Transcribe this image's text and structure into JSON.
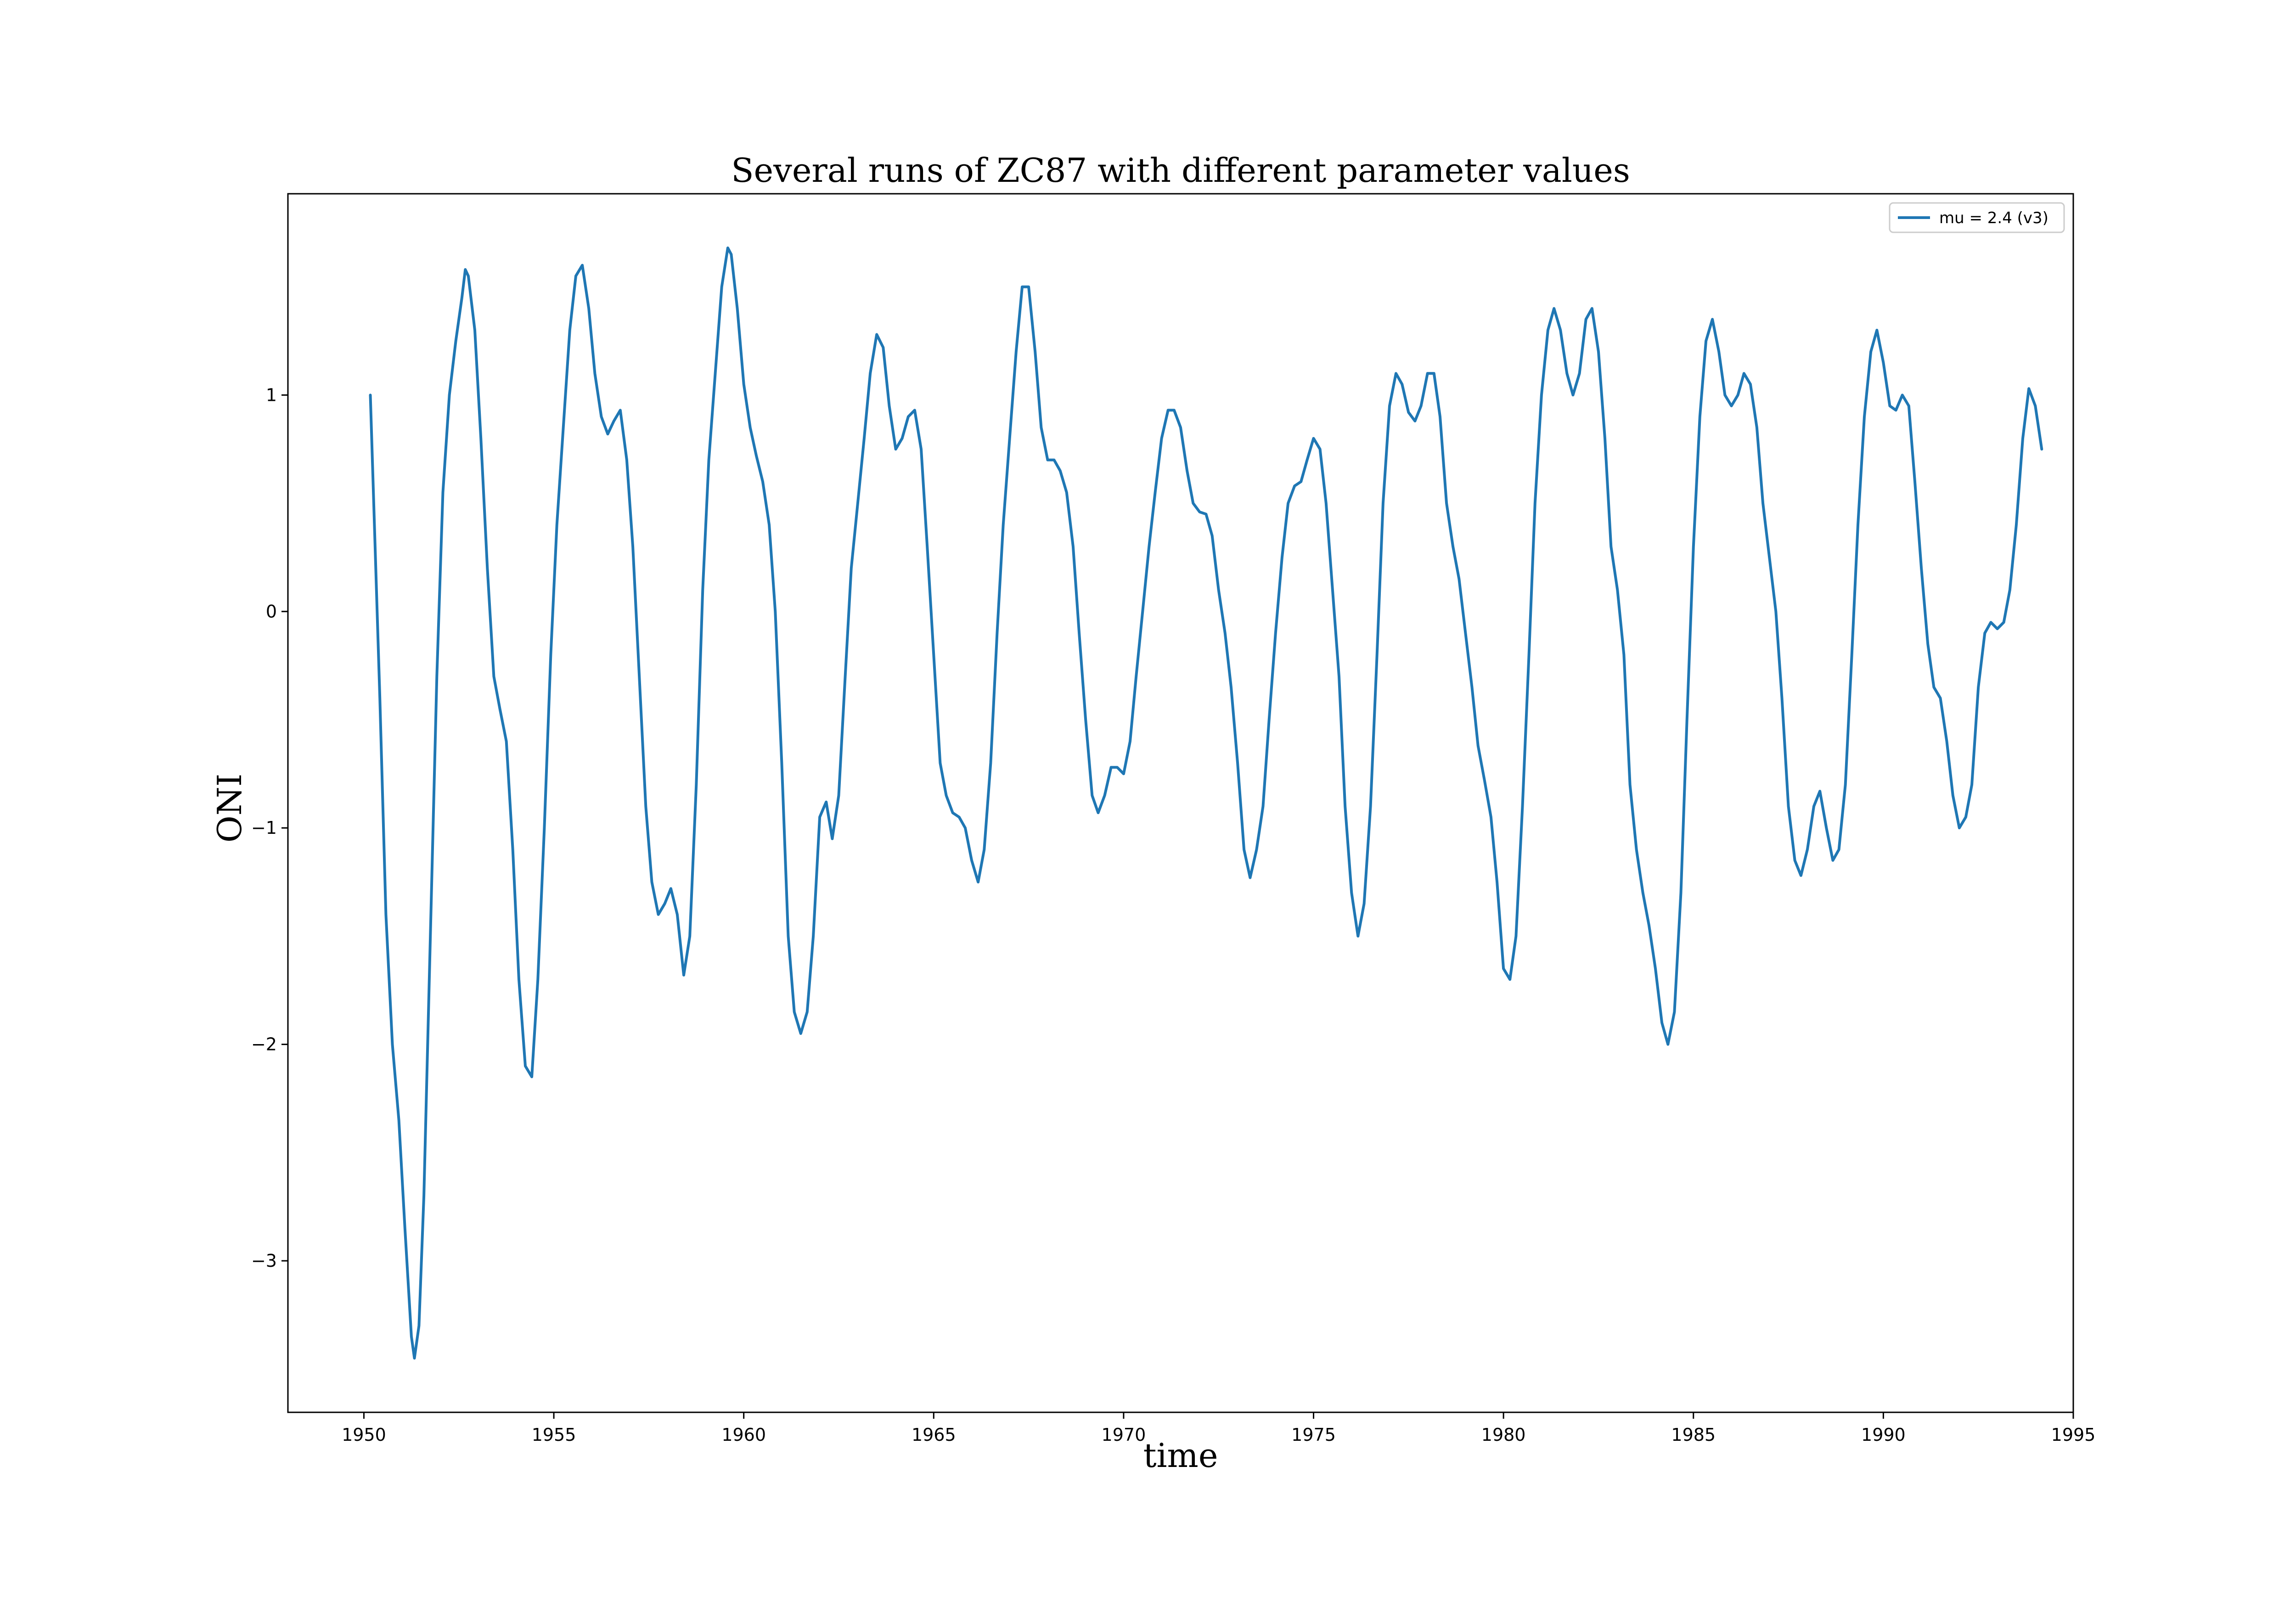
{
  "chart_data": {
    "type": "line",
    "title": "Several runs of ZC87 with different parameter values",
    "xlabel": "time",
    "ylabel": "ONI",
    "xlim": [
      1948.0,
      1995.0
    ],
    "ylim": [
      -3.7,
      1.93
    ],
    "xticks": [
      1950,
      1955,
      1960,
      1965,
      1970,
      1975,
      1980,
      1985,
      1990,
      1995
    ],
    "xtick_labels": [
      "1950",
      "1955",
      "1960",
      "1965",
      "1970",
      "1975",
      "1980",
      "1985",
      "1990",
      "1995"
    ],
    "yticks": [
      -3,
      -2,
      -1,
      0,
      1
    ],
    "ytick_labels": [
      "−3",
      "−2",
      "−1",
      "0",
      "1"
    ],
    "grid": false,
    "legend_position": "top-right",
    "series": [
      {
        "name": "mu = 2.4 (v3)",
        "color": "#1f77b4",
        "points": [
          [
            1950.17,
            1.0
          ],
          [
            1950.42,
            -0.4
          ],
          [
            1950.58,
            -1.4
          ],
          [
            1950.75,
            -2.0
          ],
          [
            1950.92,
            -2.35
          ],
          [
            1951.08,
            -2.85
          ],
          [
            1951.25,
            -3.35
          ],
          [
            1951.33,
            -3.45
          ],
          [
            1951.45,
            -3.3
          ],
          [
            1951.58,
            -2.7
          ],
          [
            1951.75,
            -1.5
          ],
          [
            1951.92,
            -0.3
          ],
          [
            1952.08,
            0.55
          ],
          [
            1952.25,
            1.0
          ],
          [
            1952.42,
            1.25
          ],
          [
            1952.58,
            1.45
          ],
          [
            1952.67,
            1.58
          ],
          [
            1952.75,
            1.55
          ],
          [
            1952.92,
            1.3
          ],
          [
            1953.08,
            0.8
          ],
          [
            1953.25,
            0.2
          ],
          [
            1953.42,
            -0.3
          ],
          [
            1953.58,
            -0.45
          ],
          [
            1953.75,
            -0.6
          ],
          [
            1953.92,
            -1.1
          ],
          [
            1954.08,
            -1.7
          ],
          [
            1954.25,
            -2.1
          ],
          [
            1954.42,
            -2.15
          ],
          [
            1954.58,
            -1.7
          ],
          [
            1954.75,
            -1.0
          ],
          [
            1954.92,
            -0.2
          ],
          [
            1955.08,
            0.4
          ],
          [
            1955.25,
            0.85
          ],
          [
            1955.42,
            1.3
          ],
          [
            1955.58,
            1.55
          ],
          [
            1955.75,
            1.6
          ],
          [
            1955.92,
            1.4
          ],
          [
            1956.08,
            1.1
          ],
          [
            1956.25,
            0.9
          ],
          [
            1956.42,
            0.82
          ],
          [
            1956.58,
            0.88
          ],
          [
            1956.75,
            0.93
          ],
          [
            1956.92,
            0.7
          ],
          [
            1957.08,
            0.3
          ],
          [
            1957.25,
            -0.3
          ],
          [
            1957.42,
            -0.9
          ],
          [
            1957.58,
            -1.25
          ],
          [
            1957.75,
            -1.4
          ],
          [
            1957.92,
            -1.35
          ],
          [
            1958.08,
            -1.28
          ],
          [
            1958.25,
            -1.4
          ],
          [
            1958.42,
            -1.68
          ],
          [
            1958.58,
            -1.5
          ],
          [
            1958.75,
            -0.8
          ],
          [
            1958.92,
            0.1
          ],
          [
            1959.08,
            0.7
          ],
          [
            1959.25,
            1.1
          ],
          [
            1959.42,
            1.5
          ],
          [
            1959.58,
            1.68
          ],
          [
            1959.67,
            1.65
          ],
          [
            1959.83,
            1.4
          ],
          [
            1960.0,
            1.05
          ],
          [
            1960.17,
            0.85
          ],
          [
            1960.33,
            0.72
          ],
          [
            1960.5,
            0.6
          ],
          [
            1960.67,
            0.4
          ],
          [
            1960.83,
            0.0
          ],
          [
            1961.0,
            -0.7
          ],
          [
            1961.17,
            -1.5
          ],
          [
            1961.33,
            -1.85
          ],
          [
            1961.5,
            -1.95
          ],
          [
            1961.67,
            -1.85
          ],
          [
            1961.83,
            -1.5
          ],
          [
            1962.0,
            -0.95
          ],
          [
            1962.17,
            -0.88
          ],
          [
            1962.33,
            -1.05
          ],
          [
            1962.5,
            -0.85
          ],
          [
            1962.67,
            -0.3
          ],
          [
            1962.83,
            0.2
          ],
          [
            1963.0,
            0.5
          ],
          [
            1963.17,
            0.8
          ],
          [
            1963.33,
            1.1
          ],
          [
            1963.5,
            1.28
          ],
          [
            1963.67,
            1.22
          ],
          [
            1963.83,
            0.95
          ],
          [
            1964.0,
            0.75
          ],
          [
            1964.17,
            0.8
          ],
          [
            1964.33,
            0.9
          ],
          [
            1964.5,
            0.93
          ],
          [
            1964.67,
            0.75
          ],
          [
            1964.83,
            0.3
          ],
          [
            1965.0,
            -0.2
          ],
          [
            1965.17,
            -0.7
          ],
          [
            1965.33,
            -0.85
          ],
          [
            1965.5,
            -0.93
          ],
          [
            1965.67,
            -0.95
          ],
          [
            1965.83,
            -1.0
          ],
          [
            1966.0,
            -1.15
          ],
          [
            1966.17,
            -1.25
          ],
          [
            1966.33,
            -1.1
          ],
          [
            1966.5,
            -0.7
          ],
          [
            1966.67,
            -0.1
          ],
          [
            1966.83,
            0.4
          ],
          [
            1967.0,
            0.8
          ],
          [
            1967.17,
            1.2
          ],
          [
            1967.33,
            1.5
          ],
          [
            1967.5,
            1.5
          ],
          [
            1967.67,
            1.2
          ],
          [
            1967.83,
            0.85
          ],
          [
            1968.0,
            0.7
          ],
          [
            1968.17,
            0.7
          ],
          [
            1968.33,
            0.65
          ],
          [
            1968.5,
            0.55
          ],
          [
            1968.67,
            0.3
          ],
          [
            1968.83,
            -0.1
          ],
          [
            1969.0,
            -0.5
          ],
          [
            1969.17,
            -0.85
          ],
          [
            1969.33,
            -0.93
          ],
          [
            1969.5,
            -0.85
          ],
          [
            1969.67,
            -0.72
          ],
          [
            1969.83,
            -0.72
          ],
          [
            1970.0,
            -0.75
          ],
          [
            1970.17,
            -0.6
          ],
          [
            1970.33,
            -0.3
          ],
          [
            1970.5,
            0.0
          ],
          [
            1970.67,
            0.3
          ],
          [
            1970.83,
            0.55
          ],
          [
            1971.0,
            0.8
          ],
          [
            1971.17,
            0.93
          ],
          [
            1971.33,
            0.93
          ],
          [
            1971.5,
            0.85
          ],
          [
            1971.67,
            0.65
          ],
          [
            1971.83,
            0.5
          ],
          [
            1972.0,
            0.46
          ],
          [
            1972.17,
            0.45
          ],
          [
            1972.33,
            0.35
          ],
          [
            1972.5,
            0.1
          ],
          [
            1972.67,
            -0.1
          ],
          [
            1972.83,
            -0.35
          ],
          [
            1973.0,
            -0.7
          ],
          [
            1973.17,
            -1.1
          ],
          [
            1973.33,
            -1.23
          ],
          [
            1973.5,
            -1.1
          ],
          [
            1973.67,
            -0.9
          ],
          [
            1973.83,
            -0.5
          ],
          [
            1974.0,
            -0.1
          ],
          [
            1974.17,
            0.25
          ],
          [
            1974.33,
            0.5
          ],
          [
            1974.5,
            0.58
          ],
          [
            1974.67,
            0.6
          ],
          [
            1974.83,
            0.7
          ],
          [
            1975.0,
            0.8
          ],
          [
            1975.17,
            0.75
          ],
          [
            1975.33,
            0.5
          ],
          [
            1975.5,
            0.1
          ],
          [
            1975.67,
            -0.3
          ],
          [
            1975.83,
            -0.9
          ],
          [
            1976.0,
            -1.3
          ],
          [
            1976.17,
            -1.5
          ],
          [
            1976.33,
            -1.35
          ],
          [
            1976.5,
            -0.9
          ],
          [
            1976.67,
            -0.2
          ],
          [
            1976.83,
            0.5
          ],
          [
            1977.0,
            0.95
          ],
          [
            1977.17,
            1.1
          ],
          [
            1977.33,
            1.05
          ],
          [
            1977.5,
            0.92
          ],
          [
            1977.67,
            0.88
          ],
          [
            1977.83,
            0.95
          ],
          [
            1978.0,
            1.1
          ],
          [
            1978.17,
            1.1
          ],
          [
            1978.33,
            0.9
          ],
          [
            1978.5,
            0.5
          ],
          [
            1978.67,
            0.3
          ],
          [
            1978.83,
            0.15
          ],
          [
            1979.0,
            -0.1
          ],
          [
            1979.17,
            -0.35
          ],
          [
            1979.33,
            -0.62
          ],
          [
            1979.5,
            -0.78
          ],
          [
            1979.67,
            -0.95
          ],
          [
            1979.83,
            -1.25
          ],
          [
            1980.0,
            -1.65
          ],
          [
            1980.17,
            -1.7
          ],
          [
            1980.33,
            -1.5
          ],
          [
            1980.5,
            -0.9
          ],
          [
            1980.67,
            -0.2
          ],
          [
            1980.83,
            0.5
          ],
          [
            1981.0,
            1.0
          ],
          [
            1981.17,
            1.3
          ],
          [
            1981.33,
            1.4
          ],
          [
            1981.5,
            1.3
          ],
          [
            1981.67,
            1.1
          ],
          [
            1981.83,
            1.0
          ],
          [
            1982.0,
            1.1
          ],
          [
            1982.17,
            1.35
          ],
          [
            1982.33,
            1.4
          ],
          [
            1982.5,
            1.2
          ],
          [
            1982.67,
            0.8
          ],
          [
            1982.83,
            0.3
          ],
          [
            1983.0,
            0.1
          ],
          [
            1983.17,
            -0.2
          ],
          [
            1983.33,
            -0.8
          ],
          [
            1983.5,
            -1.1
          ],
          [
            1983.67,
            -1.3
          ],
          [
            1983.83,
            -1.45
          ],
          [
            1984.0,
            -1.65
          ],
          [
            1984.17,
            -1.9
          ],
          [
            1984.33,
            -2.0
          ],
          [
            1984.5,
            -1.85
          ],
          [
            1984.67,
            -1.3
          ],
          [
            1984.83,
            -0.5
          ],
          [
            1985.0,
            0.3
          ],
          [
            1985.17,
            0.9
          ],
          [
            1985.33,
            1.25
          ],
          [
            1985.5,
            1.35
          ],
          [
            1985.67,
            1.2
          ],
          [
            1985.83,
            1.0
          ],
          [
            1986.0,
            0.95
          ],
          [
            1986.17,
            1.0
          ],
          [
            1986.33,
            1.1
          ],
          [
            1986.5,
            1.05
          ],
          [
            1986.67,
            0.85
          ],
          [
            1986.83,
            0.5
          ],
          [
            1987.0,
            0.25
          ],
          [
            1987.17,
            0.0
          ],
          [
            1987.33,
            -0.4
          ],
          [
            1987.5,
            -0.9
          ],
          [
            1987.67,
            -1.15
          ],
          [
            1987.83,
            -1.22
          ],
          [
            1988.0,
            -1.1
          ],
          [
            1988.17,
            -0.9
          ],
          [
            1988.33,
            -0.83
          ],
          [
            1988.5,
            -1.0
          ],
          [
            1988.67,
            -1.15
          ],
          [
            1988.83,
            -1.1
          ],
          [
            1989.0,
            -0.8
          ],
          [
            1989.17,
            -0.2
          ],
          [
            1989.33,
            0.4
          ],
          [
            1989.5,
            0.9
          ],
          [
            1989.67,
            1.2
          ],
          [
            1989.83,
            1.3
          ],
          [
            1990.0,
            1.15
          ],
          [
            1990.17,
            0.95
          ],
          [
            1990.33,
            0.93
          ],
          [
            1990.5,
            1.0
          ],
          [
            1990.67,
            0.95
          ],
          [
            1990.83,
            0.6
          ],
          [
            1991.0,
            0.2
          ],
          [
            1991.17,
            -0.15
          ],
          [
            1991.33,
            -0.35
          ],
          [
            1991.5,
            -0.4
          ],
          [
            1991.67,
            -0.6
          ],
          [
            1991.83,
            -0.85
          ],
          [
            1992.0,
            -1.0
          ],
          [
            1992.17,
            -0.95
          ],
          [
            1992.33,
            -0.8
          ],
          [
            1992.5,
            -0.35
          ],
          [
            1992.67,
            -0.1
          ],
          [
            1992.83,
            -0.05
          ],
          [
            1993.0,
            -0.08
          ],
          [
            1993.17,
            -0.05
          ],
          [
            1993.33,
            0.1
          ],
          [
            1993.5,
            0.4
          ],
          [
            1993.67,
            0.8
          ],
          [
            1993.83,
            1.03
          ],
          [
            1994.0,
            0.95
          ],
          [
            1994.17,
            0.75
          ]
        ]
      }
    ]
  }
}
